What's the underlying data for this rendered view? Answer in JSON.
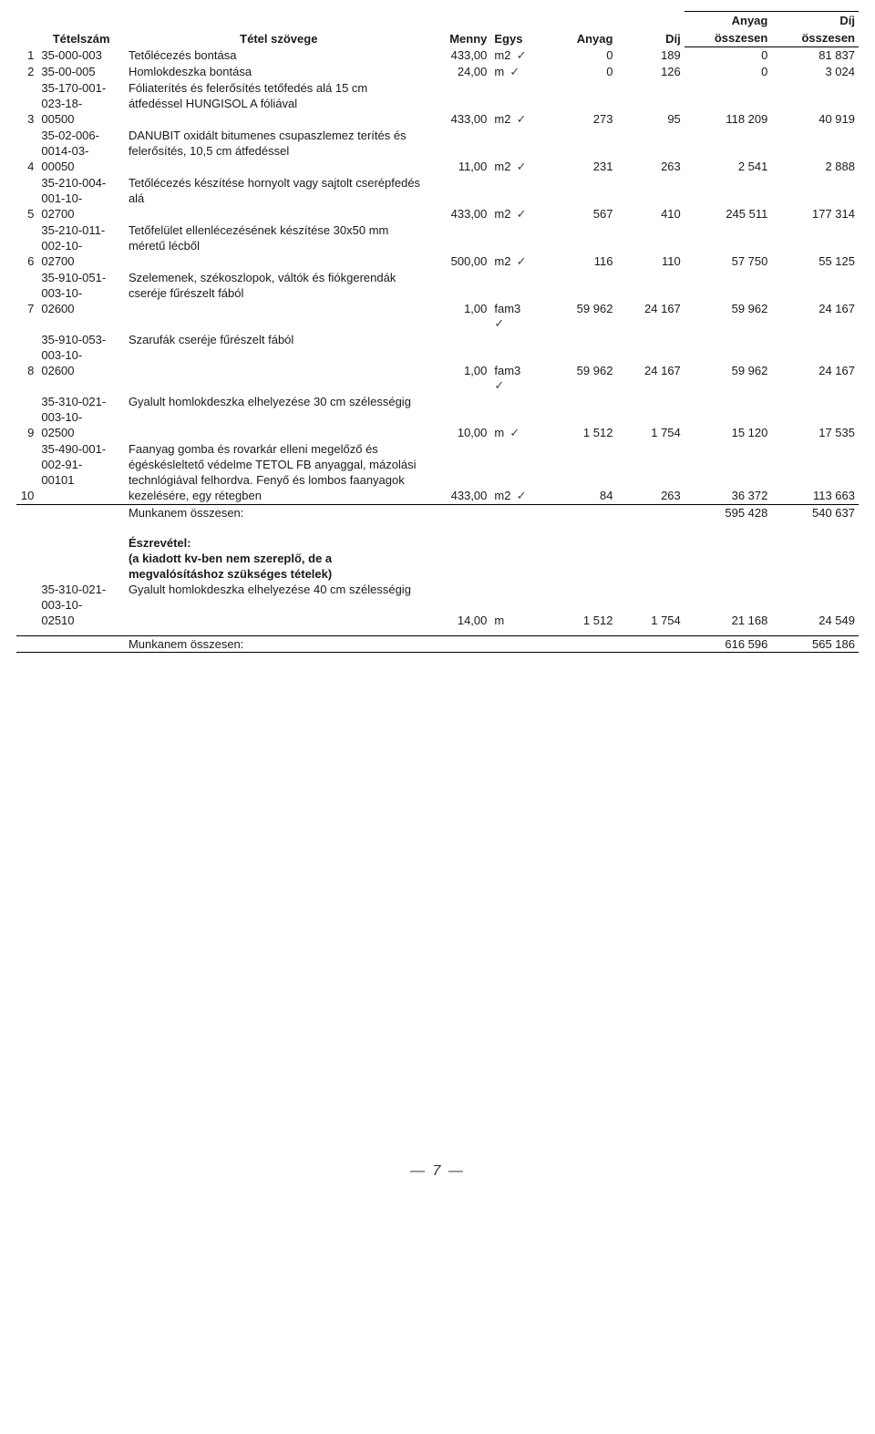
{
  "header": {
    "col_idx": "",
    "col_code": "Tételszám",
    "col_text": "Tétel szövege",
    "col_qty": "Menny",
    "col_unit": "Egys",
    "col_anyag": "Anyag",
    "col_dij": "Díj",
    "col_anyag_ossz_top": "Anyag",
    "col_anyag_ossz_bot": "összesen",
    "col_dij_ossz_top": "Díj",
    "col_dij_ossz_bot": "összesen"
  },
  "rows": [
    {
      "idx": "1",
      "code": "35-000-003",
      "text": "Tetőlécezés bontása",
      "qty": "433,00",
      "unit": "m2",
      "anyag": "0",
      "dij": "189",
      "aossz": "0",
      "dossz": "81 837",
      "tick": true
    },
    {
      "idx": "2",
      "code": "35-00-005",
      "text": "Homlokdeszka bontása",
      "qty": "24,00",
      "unit": "m",
      "anyag": "0",
      "dij": "126",
      "aossz": "0",
      "dossz": "3 024",
      "tick": true
    },
    {
      "idx": "",
      "code": "35-170-001-",
      "text": "Fóliaterítés és felerősítés tetőfedés alá 15 cm",
      "qty": "",
      "unit": "",
      "anyag": "",
      "dij": "",
      "aossz": "",
      "dossz": ""
    },
    {
      "idx": "",
      "code": "023-18-",
      "text": "átfedéssel HUNGISOL A fóliával",
      "qty": "",
      "unit": "",
      "anyag": "",
      "dij": "",
      "aossz": "",
      "dossz": ""
    },
    {
      "idx": "3",
      "code": "00500",
      "text": "",
      "qty": "433,00",
      "unit": "m2",
      "anyag": "273",
      "dij": "95",
      "aossz": "118 209",
      "dossz": "40 919",
      "tick": true
    },
    {
      "idx": "",
      "code": "35-02-006-",
      "text": "DANUBIT oxidált bitumenes csupaszlemez terítés és",
      "qty": "",
      "unit": "",
      "anyag": "",
      "dij": "",
      "aossz": "",
      "dossz": ""
    },
    {
      "idx": "",
      "code": "0014-03-",
      "text": "felerősítés, 10,5 cm átfedéssel",
      "qty": "",
      "unit": "",
      "anyag": "",
      "dij": "",
      "aossz": "",
      "dossz": ""
    },
    {
      "idx": "4",
      "code": "00050",
      "text": "",
      "qty": "11,00",
      "unit": "m2",
      "anyag": "231",
      "dij": "263",
      "aossz": "2 541",
      "dossz": "2 888",
      "tick": true
    },
    {
      "idx": "",
      "code": "35-210-004-",
      "text": "Tetőlécezés készítése hornyolt vagy sajtolt cserépfedés",
      "qty": "",
      "unit": "",
      "anyag": "",
      "dij": "",
      "aossz": "",
      "dossz": ""
    },
    {
      "idx": "",
      "code": "001-10-",
      "text": "alá",
      "qty": "",
      "unit": "",
      "anyag": "",
      "dij": "",
      "aossz": "",
      "dossz": ""
    },
    {
      "idx": "5",
      "code": "02700",
      "text": "",
      "qty": "433,00",
      "unit": "m2",
      "anyag": "567",
      "dij": "410",
      "aossz": "245 511",
      "dossz": "177 314",
      "tick": true
    },
    {
      "idx": "",
      "code": "35-210-011-",
      "text": "Tetőfelület ellenlécezésének készítése 30x50 mm",
      "qty": "",
      "unit": "",
      "anyag": "",
      "dij": "",
      "aossz": "",
      "dossz": ""
    },
    {
      "idx": "",
      "code": "002-10-",
      "text": "méretű lécből",
      "qty": "",
      "unit": "",
      "anyag": "",
      "dij": "",
      "aossz": "",
      "dossz": ""
    },
    {
      "idx": "6",
      "code": "02700",
      "text": "",
      "qty": "500,00",
      "unit": "m2",
      "anyag": "116",
      "dij": "110",
      "aossz": "57 750",
      "dossz": "55 125",
      "tick": true
    },
    {
      "idx": "",
      "code": "35-910-051-",
      "text": "Szelemenek, székoszlopok, váltók és fiókgerendák",
      "qty": "",
      "unit": "",
      "anyag": "",
      "dij": "",
      "aossz": "",
      "dossz": ""
    },
    {
      "idx": "",
      "code": "003-10-",
      "text": "cseréje fűrészelt fából",
      "qty": "",
      "unit": "",
      "anyag": "",
      "dij": "",
      "aossz": "",
      "dossz": ""
    },
    {
      "idx": "7",
      "code": "02600",
      "text": "",
      "qty": "1,00",
      "unit": "fam3",
      "anyag": "59 962",
      "dij": "24 167",
      "aossz": "59 962",
      "dossz": "24 167",
      "tick": true
    },
    {
      "idx": "",
      "code": "35-910-053-",
      "text": "Szarufák cseréje fűrészelt fából",
      "qty": "",
      "unit": "",
      "anyag": "",
      "dij": "",
      "aossz": "",
      "dossz": ""
    },
    {
      "idx": "",
      "code": "003-10-",
      "text": "",
      "qty": "",
      "unit": "",
      "anyag": "",
      "dij": "",
      "aossz": "",
      "dossz": ""
    },
    {
      "idx": "8",
      "code": "02600",
      "text": "",
      "qty": "1,00",
      "unit": "fam3",
      "anyag": "59 962",
      "dij": "24 167",
      "aossz": "59 962",
      "dossz": "24 167",
      "tick": true
    },
    {
      "idx": "",
      "code": "35-310-021-",
      "text": "Gyalult homlokdeszka elhelyezése 30 cm szélességig",
      "qty": "",
      "unit": "",
      "anyag": "",
      "dij": "",
      "aossz": "",
      "dossz": ""
    },
    {
      "idx": "",
      "code": "003-10-",
      "text": "",
      "qty": "",
      "unit": "",
      "anyag": "",
      "dij": "",
      "aossz": "",
      "dossz": ""
    },
    {
      "idx": "9",
      "code": "02500",
      "text": "",
      "qty": "10,00",
      "unit": "m",
      "anyag": "1 512",
      "dij": "1 754",
      "aossz": "15 120",
      "dossz": "17 535",
      "tick": true
    },
    {
      "idx": "",
      "code": "35-490-001-",
      "text": "Faanyag gomba és rovarkár elleni megelőző és",
      "qty": "",
      "unit": "",
      "anyag": "",
      "dij": "",
      "aossz": "",
      "dossz": ""
    },
    {
      "idx": "",
      "code": "002-91-",
      "text": "égéskésleltető védelme TETOL FB anyaggal, mázolási",
      "qty": "",
      "unit": "",
      "anyag": "",
      "dij": "",
      "aossz": "",
      "dossz": ""
    },
    {
      "idx": "",
      "code": "00101",
      "text": "technlógiával felhordva. Fenyő és lombos faanyagok",
      "qty": "",
      "unit": "",
      "anyag": "",
      "dij": "",
      "aossz": "",
      "dossz": ""
    },
    {
      "idx": "10",
      "code": "",
      "text": "kezelésére, egy rétegben",
      "qty": "433,00",
      "unit": "m2",
      "anyag": "84",
      "dij": "263",
      "aossz": "36 372",
      "dossz": "113 663",
      "tick": true,
      "underline": true
    }
  ],
  "subtotal1": {
    "label": "Munkanem összesen:",
    "aossz": "595 428",
    "dossz": "540 637"
  },
  "note": {
    "heading": "Észrevétel:",
    "line1": "(a kiadott kv-ben nem szereplő, de a",
    "line2": "megvalósításhoz szükséges tételek)"
  },
  "extra": [
    {
      "idx": "",
      "code": "35-310-021-",
      "text": "Gyalult homlokdeszka elhelyezése 40 cm szélességig",
      "qty": "",
      "unit": "",
      "anyag": "",
      "dij": "",
      "aossz": "",
      "dossz": ""
    },
    {
      "idx": "",
      "code": "003-10-",
      "text": "",
      "qty": "",
      "unit": "",
      "anyag": "",
      "dij": "",
      "aossz": "",
      "dossz": ""
    },
    {
      "idx": "",
      "code": "02510",
      "text": "",
      "qty": "14,00",
      "unit": "m",
      "anyag": "1 512",
      "dij": "1 754",
      "aossz": "21 168",
      "dossz": "24 549"
    }
  ],
  "total": {
    "label": "Munkanem összesen:",
    "aossz": "616 596",
    "dossz": "565 186"
  },
  "page_number": "— 7 —"
}
